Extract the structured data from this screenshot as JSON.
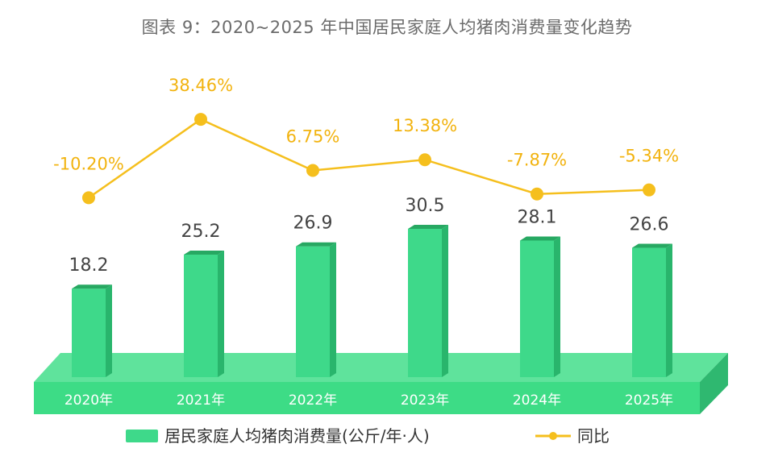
{
  "chart_data": {
    "type": "bar",
    "title": "图表 9：2020~2025 年中国居民家庭人均猪肉消费量变化趋势",
    "categories": [
      "2020年",
      "2021年",
      "2022年",
      "2023年",
      "2024年",
      "2025年"
    ],
    "series": [
      {
        "name": "居民家庭人均猪肉消费量(公斤/年·人)",
        "type": "bar",
        "values": [
          18.2,
          25.2,
          26.9,
          30.5,
          28.1,
          26.6
        ],
        "labels": [
          "18.2",
          "25.2",
          "26.9",
          "30.5",
          "28.1",
          "26.6"
        ]
      },
      {
        "name": "同比",
        "type": "line",
        "values": [
          -10.2,
          38.46,
          6.75,
          13.38,
          -7.87,
          -5.34
        ],
        "labels": [
          "-10.20%",
          "38.46%",
          "6.75%",
          "13.38%",
          "-7.87%",
          "-5.34%"
        ]
      }
    ],
    "colors": {
      "bar_front": "#3ed98a",
      "bar_side": "#29b56c",
      "bar_top": "#27a862",
      "base_front": "#3ddc86",
      "base_top": "#5fe39c",
      "base_side": "#2fb870",
      "line": "#f5bf1d",
      "value_text": "#444444",
      "pct_text": "#f2b30f",
      "category_text": "#ffffff"
    }
  }
}
